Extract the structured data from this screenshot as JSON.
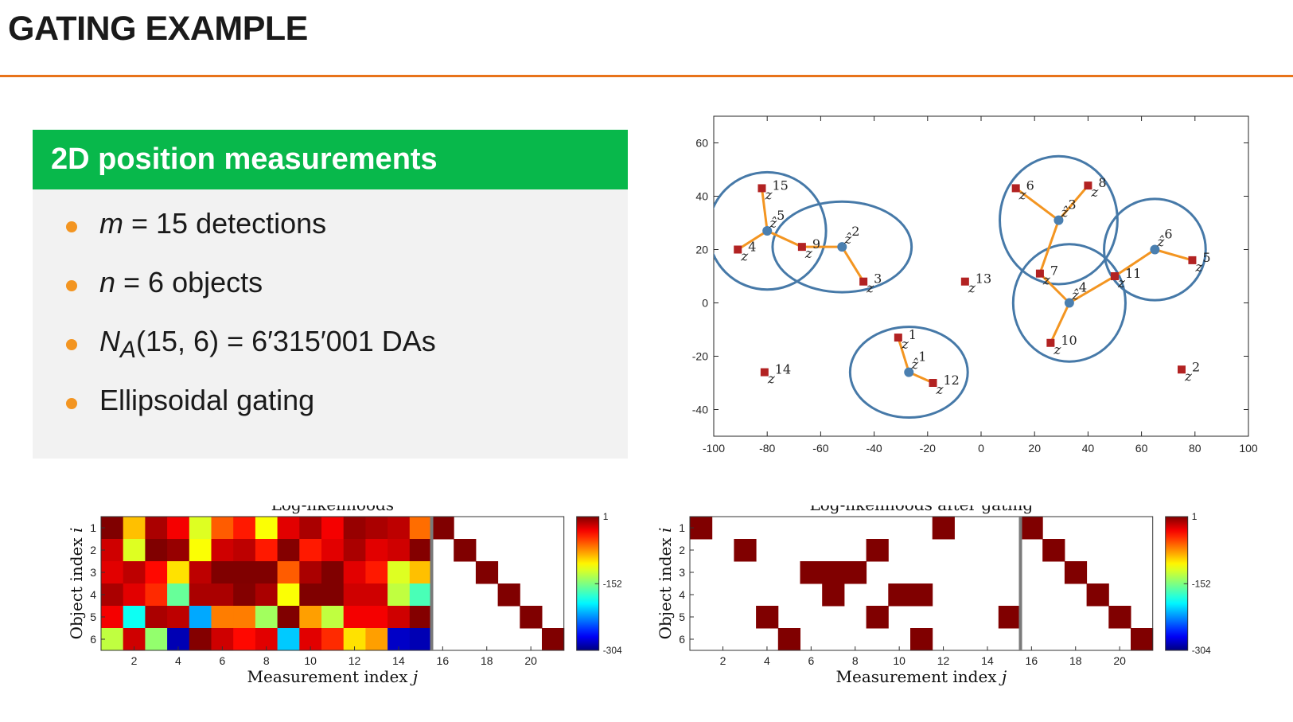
{
  "slide": {
    "title": "GATING EXAMPLE",
    "block_title": "2D position measurements",
    "bullets": [
      {
        "prefix_italic": "m",
        "text": " = 15 detections"
      },
      {
        "prefix_italic": "n",
        "text": " = 6 objects"
      },
      {
        "prefix_italic": "N",
        "sub": "A",
        "text": "(15, 6) = 6′315′001 DAs"
      },
      {
        "prefix_italic": "",
        "text": "Ellipsoidal gating"
      }
    ]
  },
  "colors": {
    "accent_rule": "#e8731a",
    "block_header": "#08b84b",
    "bullet": "#f39521",
    "gate_ellipse": "#4679a8",
    "object_estimate": "#4a7fb0",
    "measurement": "#b22222",
    "association_line": "#f39521",
    "heatmap_dark": "#800000"
  },
  "chart_data": [
    {
      "type": "scatter",
      "xlim": [
        -100,
        100
      ],
      "ylim": [
        -50,
        70
      ],
      "xticks": [
        "-100",
        "-80",
        "-60",
        "-40",
        "-20",
        "0",
        "20",
        "40",
        "60",
        "80",
        "100"
      ],
      "yticks": [
        "-40",
        "-20",
        "0",
        "20",
        "40",
        "60"
      ],
      "objects": [
        {
          "label": "1",
          "x": -27,
          "y": -26
        },
        {
          "label": "2",
          "x": -52,
          "y": 21
        },
        {
          "label": "3",
          "x": 29,
          "y": 31
        },
        {
          "label": "4",
          "x": 33,
          "y": 0
        },
        {
          "label": "5",
          "x": -80,
          "y": 27
        },
        {
          "label": "6",
          "x": 65,
          "y": 20
        }
      ],
      "measurements": [
        {
          "label": "1",
          "x": -31,
          "y": -13
        },
        {
          "label": "2",
          "x": 75,
          "y": -25
        },
        {
          "label": "3",
          "x": -44,
          "y": 8
        },
        {
          "label": "4",
          "x": -91,
          "y": 20
        },
        {
          "label": "5",
          "x": 79,
          "y": 16
        },
        {
          "label": "6",
          "x": 13,
          "y": 43
        },
        {
          "label": "7",
          "x": 22,
          "y": 11
        },
        {
          "label": "8",
          "x": 40,
          "y": 44
        },
        {
          "label": "9",
          "x": -67,
          "y": 21
        },
        {
          "label": "10",
          "x": 26,
          "y": -15
        },
        {
          "label": "11",
          "x": 50,
          "y": 10
        },
        {
          "label": "12",
          "x": -18,
          "y": -30
        },
        {
          "label": "13",
          "x": -6,
          "y": 8
        },
        {
          "label": "14",
          "x": -81,
          "y": -26
        },
        {
          "label": "15",
          "x": -82,
          "y": 43
        }
      ],
      "gate_radii": [
        {
          "object": "1",
          "rx": 22,
          "ry": 17
        },
        {
          "object": "2",
          "rx": 26,
          "ry": 17
        },
        {
          "object": "3",
          "rx": 22,
          "ry": 24
        },
        {
          "object": "4",
          "rx": 21,
          "ry": 22
        },
        {
          "object": "5",
          "rx": 22,
          "ry": 22
        },
        {
          "object": "6",
          "rx": 19,
          "ry": 19
        }
      ],
      "associations": [
        {
          "object": "1",
          "measurements": [
            "1",
            "12"
          ]
        },
        {
          "object": "2",
          "measurements": [
            "3",
            "9"
          ]
        },
        {
          "object": "3",
          "measurements": [
            "6",
            "7",
            "8"
          ]
        },
        {
          "object": "4",
          "measurements": [
            "7",
            "10",
            "11"
          ]
        },
        {
          "object": "5",
          "measurements": [
            "4",
            "9",
            "15"
          ]
        },
        {
          "object": "6",
          "measurements": [
            "5",
            "11"
          ]
        }
      ]
    },
    {
      "type": "heatmap",
      "title": "Log-likelihoods",
      "xlabel": "Measurement index j",
      "ylabel": "Object index i",
      "xticks": [
        "2",
        "4",
        "6",
        "8",
        "10",
        "12",
        "14",
        "16",
        "18",
        "20"
      ],
      "yticks": [
        "1",
        "2",
        "3",
        "4",
        "5",
        "6"
      ],
      "rows": 6,
      "cols": 21,
      "separator_after_col": 15,
      "clim": [
        -304,
        1
      ],
      "colorbar_ticks": [
        "1",
        "-152",
        "-304"
      ],
      "values": [
        [
          1,
          -90,
          -10,
          -30,
          -120,
          -60,
          -40,
          -110,
          -25,
          -10,
          -30,
          -5,
          -10,
          -15,
          -65
        ],
        [
          -20,
          -120,
          1,
          -5,
          -110,
          -20,
          -15,
          -40,
          0,
          -40,
          -25,
          -10,
          -25,
          -20,
          0
        ],
        [
          -25,
          -15,
          -35,
          -100,
          -15,
          1,
          1,
          1,
          -60,
          -10,
          1,
          -25,
          -40,
          -120,
          -90
        ],
        [
          -10,
          -25,
          -45,
          -160,
          -10,
          -10,
          0,
          -10,
          -110,
          1,
          1,
          -20,
          -20,
          -130,
          -170
        ],
        [
          -30,
          -190,
          -10,
          -15,
          -220,
          -70,
          -70,
          -140,
          1,
          -80,
          -130,
          -30,
          -30,
          -20,
          0
        ],
        [
          -130,
          -20,
          -145,
          -290,
          0,
          -20,
          -35,
          -25,
          -210,
          -25,
          -45,
          -100,
          -80,
          -285,
          -290
        ]
      ],
      "diagonal_values": [
        1,
        1,
        1,
        1,
        1,
        1
      ]
    },
    {
      "type": "heatmap",
      "title": "Log-likelihoods after gating",
      "xlabel": "Measurement index j",
      "ylabel": "Object index i",
      "xticks": [
        "2",
        "4",
        "6",
        "8",
        "10",
        "12",
        "14",
        "16",
        "18",
        "20"
      ],
      "yticks": [
        "1",
        "2",
        "3",
        "4",
        "5",
        "6"
      ],
      "rows": 6,
      "cols": 21,
      "separator_after_col": 15,
      "clim": [
        -304,
        1
      ],
      "colorbar_ticks": [
        "1",
        "-152",
        "-304"
      ],
      "gated_cells": [
        {
          "row": 1,
          "cols": [
            1,
            12
          ]
        },
        {
          "row": 2,
          "cols": [
            3,
            9
          ]
        },
        {
          "row": 3,
          "cols": [
            6,
            7,
            8
          ]
        },
        {
          "row": 4,
          "cols": [
            7,
            10,
            11
          ]
        },
        {
          "row": 5,
          "cols": [
            4,
            9,
            15
          ]
        },
        {
          "row": 6,
          "cols": [
            5,
            11
          ]
        }
      ],
      "diagonal_values": [
        1,
        1,
        1,
        1,
        1,
        1
      ]
    }
  ]
}
